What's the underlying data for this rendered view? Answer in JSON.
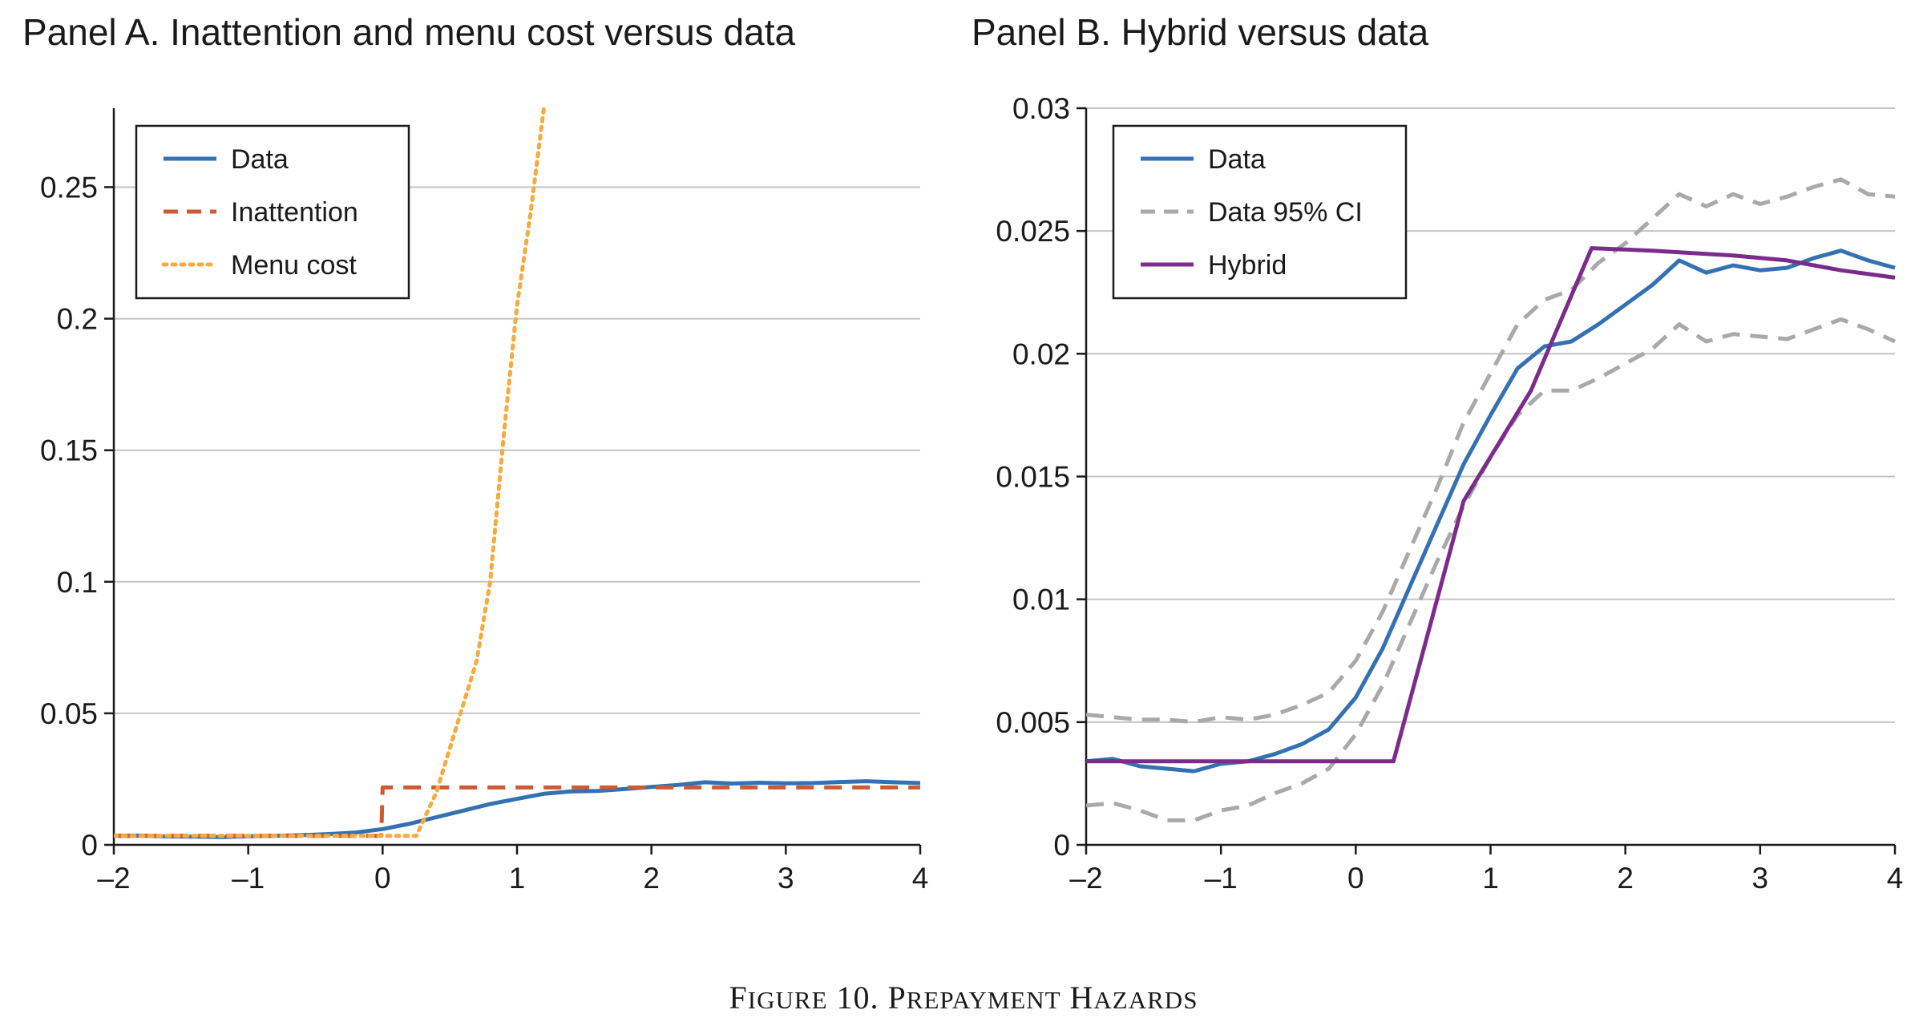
{
  "caption": {
    "parts": [
      {
        "text": "F",
        "size": "big"
      },
      {
        "text": "IGURE",
        "size": "small"
      },
      {
        "text": " 10. P",
        "size": "big"
      },
      {
        "text": "REPAYMENT",
        "size": "small"
      },
      {
        "text": " H",
        "size": "big"
      },
      {
        "text": "AZARDS",
        "size": "small"
      }
    ]
  },
  "colors": {
    "data": "#3471b2",
    "inattention": "#cc5a32",
    "menu_cost": "#f4ab3f",
    "ci": "#a9a9a9",
    "hybrid": "#7b2b8a",
    "grid": "#c4c4c4",
    "axis": "#1a1a1a"
  },
  "chart_data": [
    {
      "type": "line",
      "title": "Panel A. Inattention and menu cost versus data",
      "xlabel": "",
      "ylabel": "",
      "xlim": [
        -2,
        4
      ],
      "ylim": [
        0,
        0.28
      ],
      "xticks": [
        -2,
        -1,
        0,
        1,
        2,
        3,
        4
      ],
      "xtick_labels": [
        "–2",
        "–1",
        "0",
        "1",
        "2",
        "3",
        "4"
      ],
      "yticks": [
        0,
        0.05,
        0.1,
        0.15,
        0.2,
        0.25
      ],
      "ytick_labels": [
        "0",
        "0.05",
        "0.1",
        "0.15",
        "0.2",
        "0.25"
      ],
      "grid": "horizontal",
      "legend_position": "top-left",
      "series": [
        {
          "name": "Data",
          "color_key": "data",
          "dash": "solid",
          "x": [
            -2,
            -1.8,
            -1.6,
            -1.4,
            -1.2,
            -1.0,
            -0.8,
            -0.6,
            -0.4,
            -0.2,
            0.0,
            0.2,
            0.4,
            0.6,
            0.8,
            1.0,
            1.2,
            1.4,
            1.6,
            1.8,
            2.0,
            2.2,
            2.4,
            2.6,
            2.8,
            3.0,
            3.2,
            3.4,
            3.6,
            3.8,
            4.0
          ],
          "y": [
            0.0034,
            0.0035,
            0.0032,
            0.0031,
            0.003,
            0.0033,
            0.0034,
            0.0037,
            0.0041,
            0.0047,
            0.006,
            0.008,
            0.0105,
            0.013,
            0.0155,
            0.0175,
            0.0194,
            0.0203,
            0.0205,
            0.0212,
            0.022,
            0.0228,
            0.0238,
            0.0233,
            0.0236,
            0.0234,
            0.0235,
            0.0239,
            0.0242,
            0.0238,
            0.0235
          ]
        },
        {
          "name": "Inattention",
          "color_key": "inattention",
          "dash": "dashed",
          "x": [
            -2,
            -0.01,
            0,
            4
          ],
          "y": [
            0.0034,
            0.0034,
            0.0218,
            0.0218
          ]
        },
        {
          "name": "Menu cost",
          "color_key": "menu_cost",
          "dash": "dotted",
          "x": [
            -2,
            0.25,
            0.4,
            0.55,
            0.7,
            0.8,
            0.9,
            1.0,
            1.1,
            1.2
          ],
          "y": [
            0.0034,
            0.0034,
            0.02,
            0.045,
            0.07,
            0.1,
            0.155,
            0.205,
            0.24,
            0.28
          ]
        }
      ]
    },
    {
      "type": "line",
      "title": "Panel B. Hybrid versus data",
      "xlabel": "",
      "ylabel": "",
      "xlim": [
        -2,
        4
      ],
      "ylim": [
        0,
        0.03
      ],
      "xticks": [
        -2,
        -1,
        0,
        1,
        2,
        3,
        4
      ],
      "xtick_labels": [
        "–2",
        "–1",
        "0",
        "1",
        "2",
        "3",
        "4"
      ],
      "yticks": [
        0,
        0.005,
        0.01,
        0.015,
        0.02,
        0.025,
        0.03
      ],
      "ytick_labels": [
        "0",
        "0.005",
        "0.01",
        "0.015",
        "0.02",
        "0.025",
        "0.03"
      ],
      "grid": "horizontal",
      "legend_position": "top-left",
      "series": [
        {
          "name": "Data",
          "color_key": "data",
          "dash": "solid",
          "x": [
            -2,
            -1.8,
            -1.6,
            -1.4,
            -1.2,
            -1.0,
            -0.8,
            -0.6,
            -0.4,
            -0.2,
            0.0,
            0.2,
            0.4,
            0.6,
            0.8,
            1.0,
            1.2,
            1.4,
            1.6,
            1.8,
            2.0,
            2.2,
            2.4,
            2.6,
            2.8,
            3.0,
            3.2,
            3.4,
            3.6,
            3.8,
            4.0
          ],
          "y": [
            0.0034,
            0.0035,
            0.0032,
            0.0031,
            0.003,
            0.0033,
            0.0034,
            0.0037,
            0.0041,
            0.0047,
            0.006,
            0.008,
            0.0105,
            0.013,
            0.0155,
            0.0175,
            0.0194,
            0.0203,
            0.0205,
            0.0212,
            0.022,
            0.0228,
            0.0238,
            0.0233,
            0.0236,
            0.0234,
            0.0235,
            0.0239,
            0.0242,
            0.0238,
            0.0235
          ]
        },
        {
          "name": "Data 95% CI",
          "color_key": "ci",
          "dash": "dashed",
          "legend": true,
          "x": [
            -2,
            -1.8,
            -1.6,
            -1.4,
            -1.2,
            -1.0,
            -0.8,
            -0.6,
            -0.4,
            -0.2,
            0.0,
            0.2,
            0.4,
            0.6,
            0.8,
            1.0,
            1.2,
            1.4,
            1.6,
            1.8,
            2.0,
            2.2,
            2.4,
            2.6,
            2.8,
            3.0,
            3.2,
            3.4,
            3.6,
            3.8,
            4.0
          ],
          "y": [
            0.0053,
            0.0052,
            0.0051,
            0.0051,
            0.005,
            0.0052,
            0.0051,
            0.0053,
            0.0057,
            0.0062,
            0.0075,
            0.0095,
            0.012,
            0.0145,
            0.0172,
            0.0192,
            0.0212,
            0.0222,
            0.0226,
            0.0237,
            0.0245,
            0.0255,
            0.0265,
            0.026,
            0.0265,
            0.0261,
            0.0264,
            0.0268,
            0.0271,
            0.0265,
            0.0264
          ]
        },
        {
          "name": "",
          "color_key": "ci",
          "dash": "dashed",
          "legend": false,
          "x": [
            -2,
            -1.8,
            -1.6,
            -1.4,
            -1.2,
            -1.0,
            -0.8,
            -0.6,
            -0.4,
            -0.2,
            0.0,
            0.2,
            0.4,
            0.6,
            0.8,
            1.0,
            1.2,
            1.4,
            1.6,
            1.8,
            2.0,
            2.2,
            2.4,
            2.6,
            2.8,
            3.0,
            3.2,
            3.4,
            3.6,
            3.8,
            4.0
          ],
          "y": [
            0.0016,
            0.0017,
            0.0014,
            0.001,
            0.001,
            0.0014,
            0.0016,
            0.0021,
            0.0025,
            0.0031,
            0.0045,
            0.0065,
            0.009,
            0.0115,
            0.0138,
            0.0158,
            0.0175,
            0.0185,
            0.0185,
            0.019,
            0.0196,
            0.0202,
            0.0212,
            0.0205,
            0.0208,
            0.0207,
            0.0206,
            0.021,
            0.0214,
            0.021,
            0.0205
          ]
        },
        {
          "name": "Hybrid",
          "color_key": "hybrid",
          "dash": "solid",
          "x": [
            -2,
            0.28,
            0.8,
            1.3,
            1.75,
            2.2,
            2.8,
            3.2,
            3.6,
            4.0
          ],
          "y": [
            0.0034,
            0.0034,
            0.014,
            0.0185,
            0.0243,
            0.0242,
            0.024,
            0.0238,
            0.0234,
            0.0231
          ]
        }
      ]
    }
  ]
}
